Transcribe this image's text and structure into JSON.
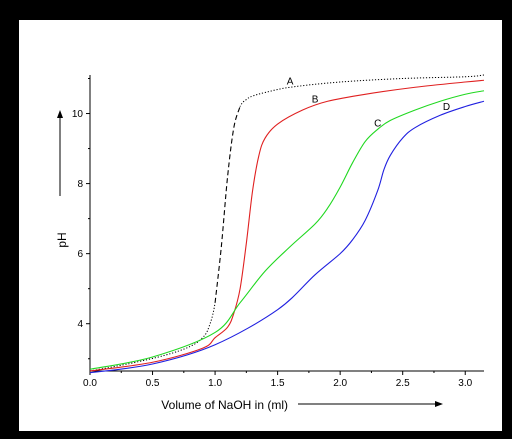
{
  "chart_data": {
    "type": "line",
    "xlabel": "Volume of NaOH in (ml)",
    "ylabel": "pH",
    "xlim": [
      0.0,
      3.15
    ],
    "ylim": [
      2.65,
      11.1
    ],
    "x_ticks": [
      "0.0",
      "0.5",
      "1.0",
      "1.5",
      "2.0",
      "2.5",
      "3.0"
    ],
    "y_ticks": [
      "4",
      "6",
      "8",
      "10"
    ],
    "grid": false,
    "series": [
      {
        "name": "A",
        "style": "dotted-dashed",
        "color": "#000000",
        "x": [
          0.0,
          0.3,
          0.6,
          0.8,
          0.9,
          0.95,
          1.0,
          1.05,
          1.1,
          1.15,
          1.2,
          1.25,
          1.3,
          1.4,
          1.6,
          2.0,
          2.5,
          3.0,
          3.15
        ],
        "y": [
          2.65,
          2.85,
          3.1,
          3.35,
          3.6,
          3.9,
          4.6,
          6.2,
          8.2,
          9.6,
          10.2,
          10.4,
          10.5,
          10.6,
          10.75,
          10.9,
          11.0,
          11.05,
          11.1
        ]
      },
      {
        "name": "B",
        "color": "#e02020",
        "x": [
          0.0,
          0.5,
          0.9,
          1.0,
          1.1,
          1.15,
          1.2,
          1.25,
          1.3,
          1.35,
          1.4,
          1.5,
          1.7,
          1.9,
          2.2,
          2.6,
          3.0,
          3.15
        ],
        "y": [
          2.65,
          2.9,
          3.3,
          3.6,
          3.9,
          4.3,
          5.0,
          6.3,
          7.8,
          8.8,
          9.3,
          9.7,
          10.1,
          10.35,
          10.55,
          10.75,
          10.9,
          10.95
        ]
      },
      {
        "name": "C",
        "color": "#20d820",
        "x": [
          0.0,
          0.5,
          1.0,
          1.2,
          1.4,
          1.6,
          1.8,
          1.9,
          2.0,
          2.1,
          2.2,
          2.3,
          2.4,
          2.6,
          2.8,
          3.0,
          3.15
        ],
        "y": [
          2.7,
          3.05,
          3.75,
          4.6,
          5.5,
          6.2,
          6.85,
          7.3,
          7.9,
          8.6,
          9.2,
          9.55,
          9.8,
          10.1,
          10.35,
          10.55,
          10.65
        ]
      },
      {
        "name": "D",
        "color": "#2020e0",
        "x": [
          0.0,
          0.5,
          1.0,
          1.5,
          1.8,
          2.0,
          2.1,
          2.2,
          2.3,
          2.35,
          2.4,
          2.5,
          2.6,
          2.8,
          3.0,
          3.15
        ],
        "y": [
          2.6,
          2.85,
          3.4,
          4.4,
          5.4,
          6.0,
          6.4,
          6.95,
          7.8,
          8.4,
          8.8,
          9.3,
          9.6,
          9.95,
          10.2,
          10.35
        ]
      }
    ]
  }
}
